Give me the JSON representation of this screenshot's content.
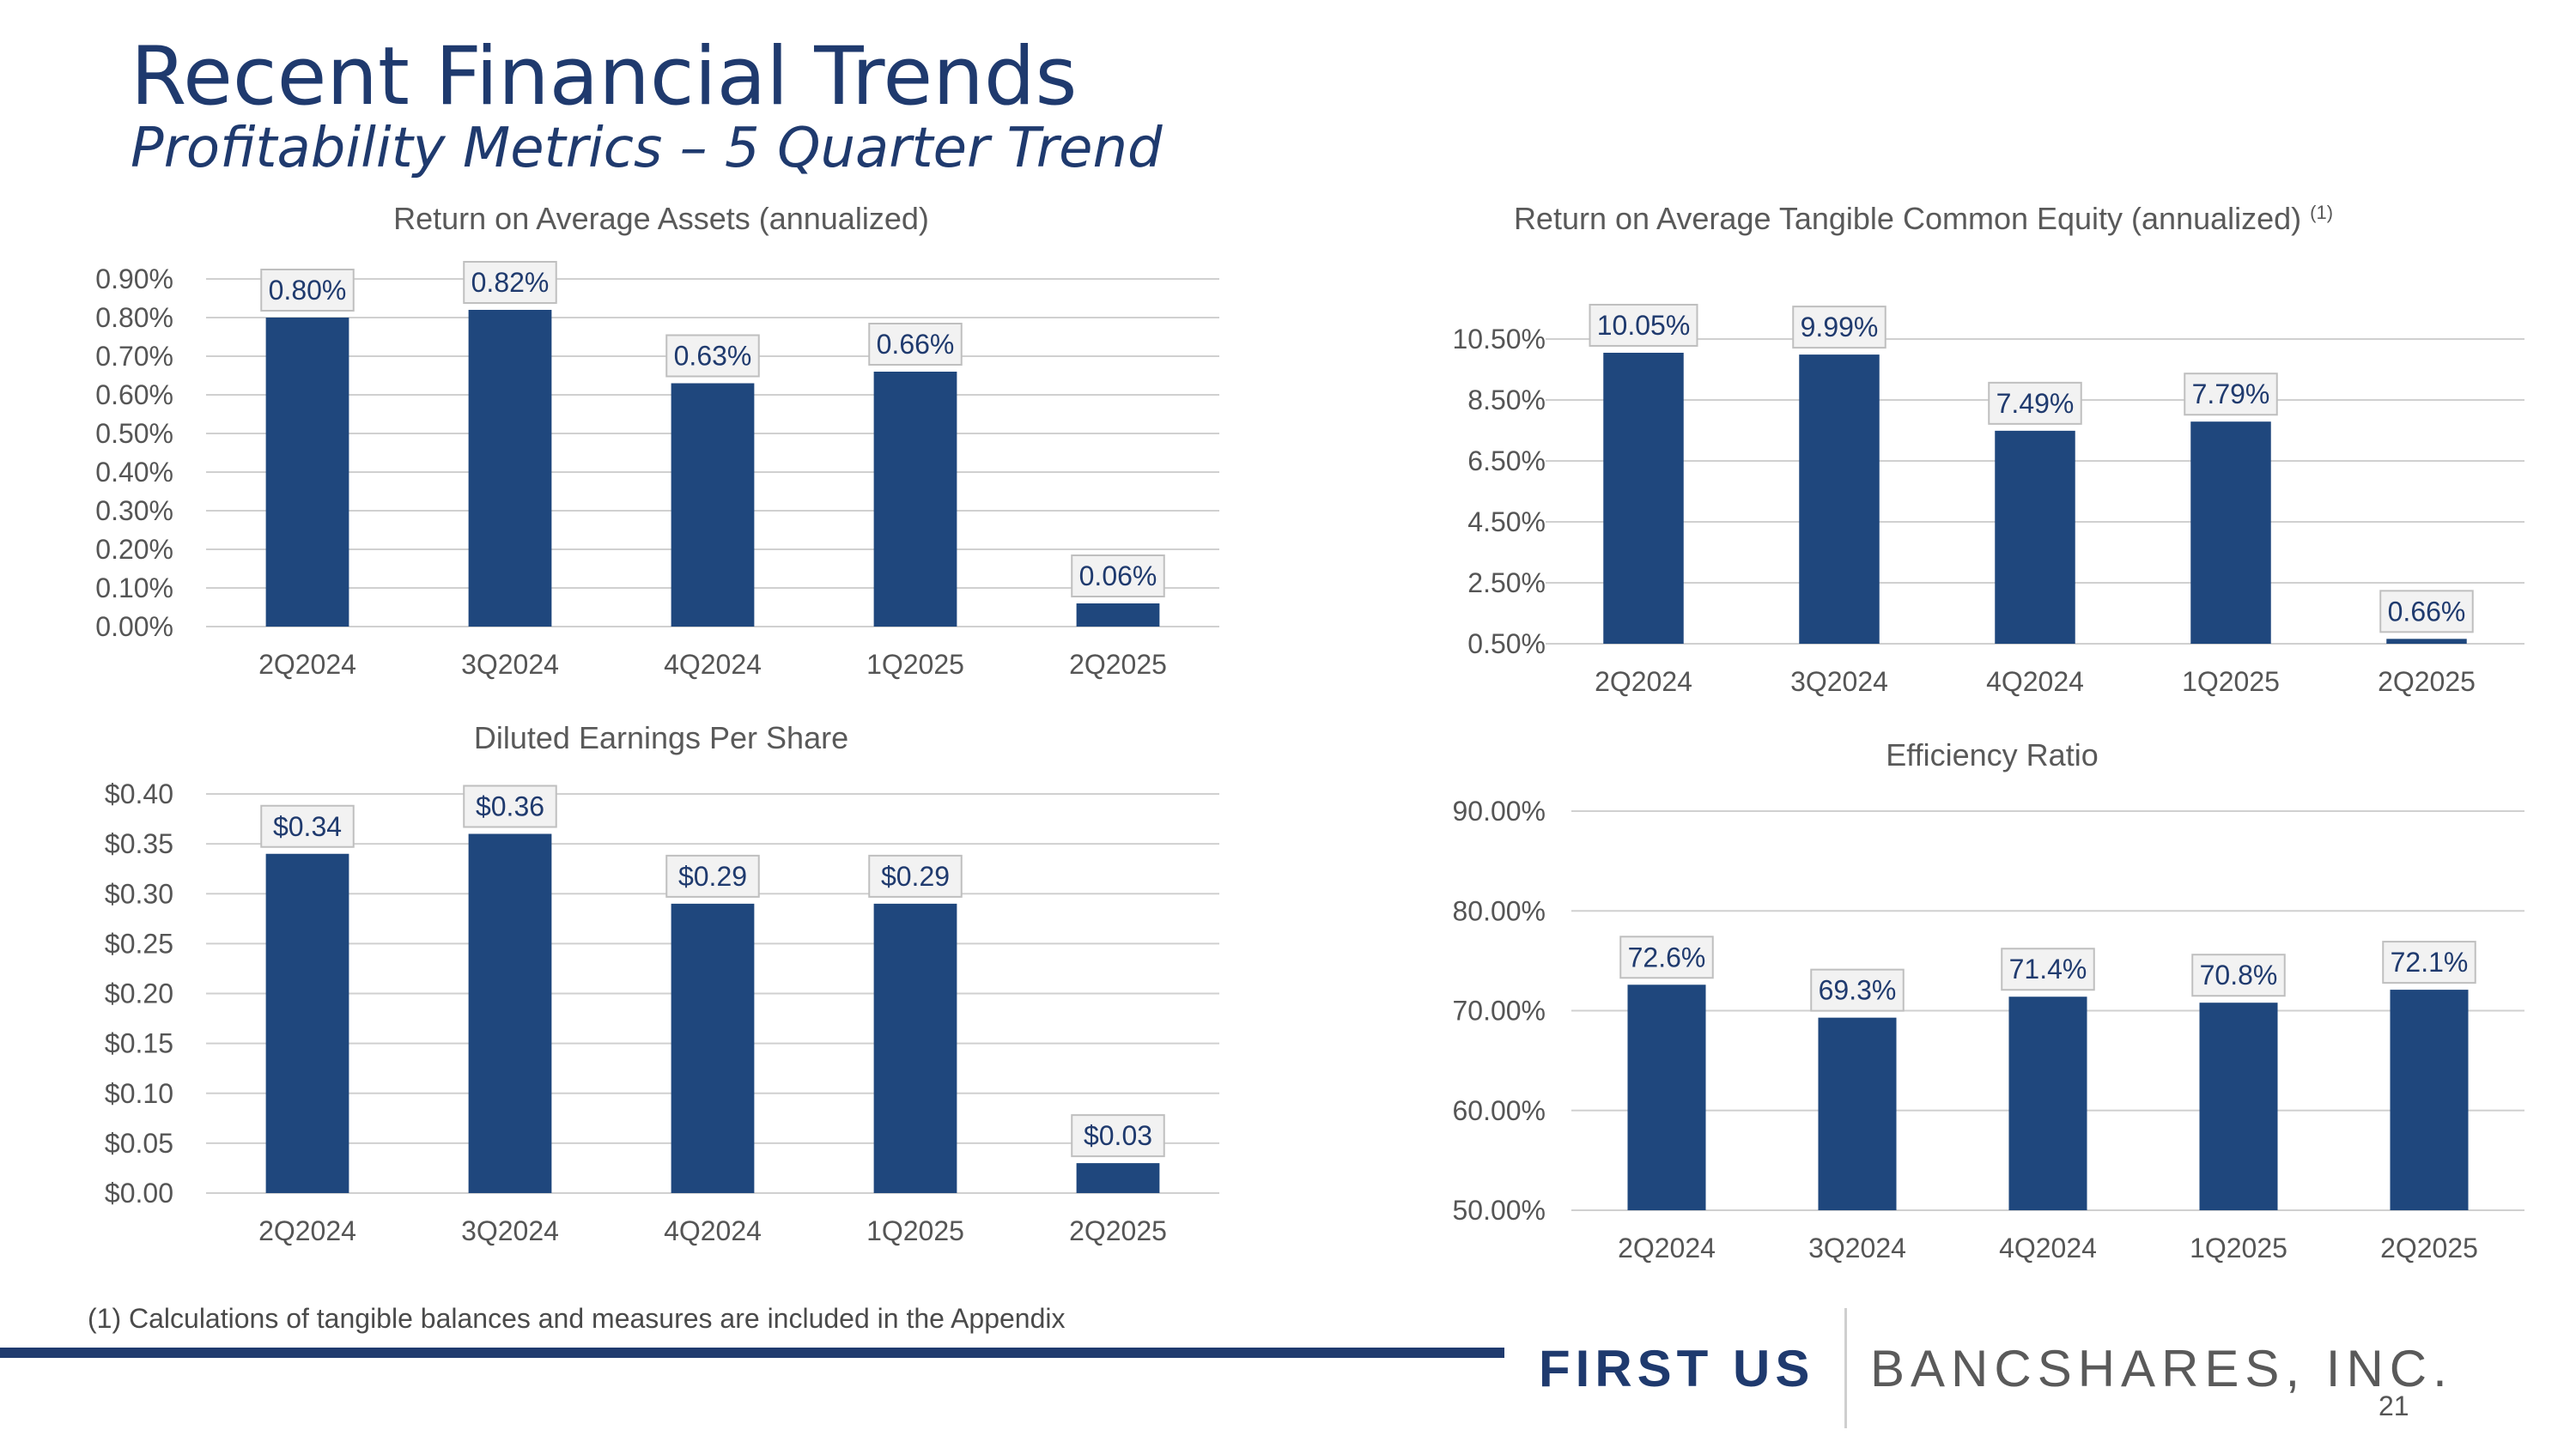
{
  "page": {
    "title": "Recent Financial Trends",
    "subtitle": "Profitability Metrics – 5 Quarter Trend",
    "footnote": "(1) Calculations of tangible balances and measures are included in the Appendix",
    "logo_left": "FIRST US",
    "logo_right": "BANCSHARES, INC.",
    "page_number": "21"
  },
  "colors": {
    "bar": "#1f477d",
    "label_text": "#1f3a6e",
    "label_bg": "#f2f2f2",
    "label_border": "#bfbfbf",
    "grid": "#d0d0d0",
    "axis_text": "#555555",
    "title_text": "#595959"
  },
  "chart_data": [
    {
      "id": "roaa",
      "type": "bar",
      "title": "Return on Average Assets (annualized)",
      "title_superscript": "",
      "categories": [
        "2Q2024",
        "3Q2024",
        "4Q2024",
        "1Q2025",
        "2Q2025"
      ],
      "values": [
        0.8,
        0.82,
        0.63,
        0.66,
        0.06
      ],
      "data_labels": [
        "0.80%",
        "0.82%",
        "0.63%",
        "0.66%",
        "0.06%"
      ],
      "ylim": [
        0,
        0.9
      ],
      "yticks": [
        0,
        0.1,
        0.2,
        0.3,
        0.4,
        0.5,
        0.6,
        0.7,
        0.8,
        0.9
      ],
      "ytick_labels": [
        "0.00%",
        "0.10%",
        "0.20%",
        "0.30%",
        "0.40%",
        "0.50%",
        "0.60%",
        "0.70%",
        "0.80%",
        "0.90%"
      ],
      "xlabel": "",
      "ylabel": ""
    },
    {
      "id": "rotce",
      "type": "bar",
      "title": "Return on Average Tangible Common Equity (annualized)",
      "title_superscript": "(1)",
      "categories": [
        "2Q2024",
        "3Q2024",
        "4Q2024",
        "1Q2025",
        "2Q2025"
      ],
      "values": [
        10.05,
        9.99,
        7.49,
        7.79,
        0.66
      ],
      "data_labels": [
        "10.05%",
        "9.99%",
        "7.49%",
        "7.79%",
        "0.66%"
      ],
      "ylim": [
        0.5,
        10.5
      ],
      "yticks": [
        0.5,
        2.5,
        4.5,
        6.5,
        8.5,
        10.5
      ],
      "ytick_labels": [
        "0.50%",
        "2.50%",
        "4.50%",
        "6.50%",
        "8.50%",
        "10.50%"
      ],
      "xlabel": "",
      "ylabel": ""
    },
    {
      "id": "eps",
      "type": "bar",
      "title": "Diluted Earnings Per Share",
      "title_superscript": "",
      "categories": [
        "2Q2024",
        "3Q2024",
        "4Q2024",
        "1Q2025",
        "2Q2025"
      ],
      "values": [
        0.34,
        0.36,
        0.29,
        0.29,
        0.03
      ],
      "data_labels": [
        "$0.34",
        "$0.36",
        "$0.29",
        "$0.29",
        "$0.03"
      ],
      "ylim": [
        0,
        0.4
      ],
      "yticks": [
        0,
        0.05,
        0.1,
        0.15,
        0.2,
        0.25,
        0.3,
        0.35,
        0.4
      ],
      "ytick_labels": [
        "$0.00",
        "$0.05",
        "$0.10",
        "$0.15",
        "$0.20",
        "$0.25",
        "$0.30",
        "$0.35",
        "$0.40"
      ],
      "xlabel": "",
      "ylabel": ""
    },
    {
      "id": "efficiency",
      "type": "bar",
      "title": "Efficiency Ratio",
      "title_superscript": "",
      "categories": [
        "2Q2024",
        "3Q2024",
        "4Q2024",
        "1Q2025",
        "2Q2025"
      ],
      "values": [
        72.6,
        69.3,
        71.4,
        70.8,
        72.1
      ],
      "data_labels": [
        "72.6%",
        "69.3%",
        "71.4%",
        "70.8%",
        "72.1%"
      ],
      "ylim": [
        50,
        90
      ],
      "yticks": [
        50,
        60,
        70,
        80,
        90
      ],
      "ytick_labels": [
        "50.00%",
        "60.00%",
        "70.00%",
        "80.00%",
        "90.00%"
      ],
      "xlabel": "",
      "ylabel": ""
    }
  ]
}
